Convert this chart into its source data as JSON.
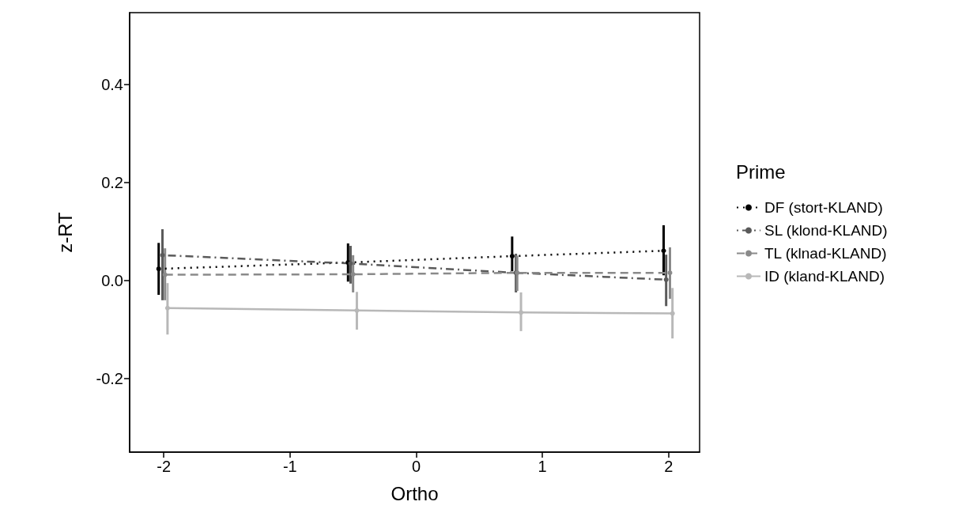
{
  "chart_data": {
    "type": "line",
    "xlabel": "Ortho",
    "ylabel": "z-RT",
    "legend_title": "Prime",
    "xlim": [
      -2.27,
      2.245
    ],
    "xticks": [
      -2,
      -1,
      0,
      1,
      2
    ],
    "ylim": [
      -0.35,
      0.547
    ],
    "yticks": [
      -0.2,
      {
        "value": 0,
        "label": "0.0"
      },
      0.2,
      0.4
    ],
    "grid": false,
    "legend": "right",
    "marker": "circle",
    "series": [
      {
        "name": "DF (stort-KLAND)",
        "color": "#000000",
        "line_style": "dotted",
        "x": [
          -2.04,
          -0.54,
          0.76,
          1.96
        ],
        "values": [
          0.024,
          0.037,
          0.05,
          0.061
        ],
        "errors": [
          [
            -0.029,
            0.077
          ],
          [
            -0.002,
            0.076
          ],
          [
            0.019,
            0.09
          ],
          [
            0.011,
            0.113
          ]
        ]
      },
      {
        "name": "SL (klond-KLAND)",
        "color": "#5a5a5a",
        "line_style": "dashdot",
        "x": [
          -2.01,
          -0.52,
          0.79,
          1.98
        ],
        "values": [
          0.052,
          0.035,
          0.016,
          0.002
        ],
        "errors": [
          [
            -0.04,
            0.105
          ],
          [
            -0.006,
            0.071
          ],
          [
            -0.024,
            0.055
          ],
          [
            -0.052,
            0.053
          ]
        ]
      },
      {
        "name": "TL (klnad-KLAND)",
        "color": "#8a8a8a",
        "line_style": "dashed",
        "x": [
          -1.99,
          -0.5,
          0.8,
          2.01
        ],
        "values": [
          0.012,
          0.013,
          0.016,
          0.016
        ],
        "errors": [
          [
            -0.04,
            0.066
          ],
          [
            -0.024,
            0.052
          ],
          [
            -0.021,
            0.051
          ],
          [
            -0.037,
            0.068
          ]
        ]
      },
      {
        "name": "ID (kland-KLAND)",
        "color": "#b8b8b8",
        "line_style": "solid",
        "x": [
          -1.97,
          -0.47,
          0.83,
          2.03
        ],
        "values": [
          -0.056,
          -0.061,
          -0.065,
          -0.067
        ],
        "errors": [
          [
            -0.11,
            -0.005
          ],
          [
            -0.1,
            -0.023
          ],
          [
            -0.103,
            -0.024
          ],
          [
            -0.118,
            -0.015
          ]
        ]
      }
    ]
  }
}
